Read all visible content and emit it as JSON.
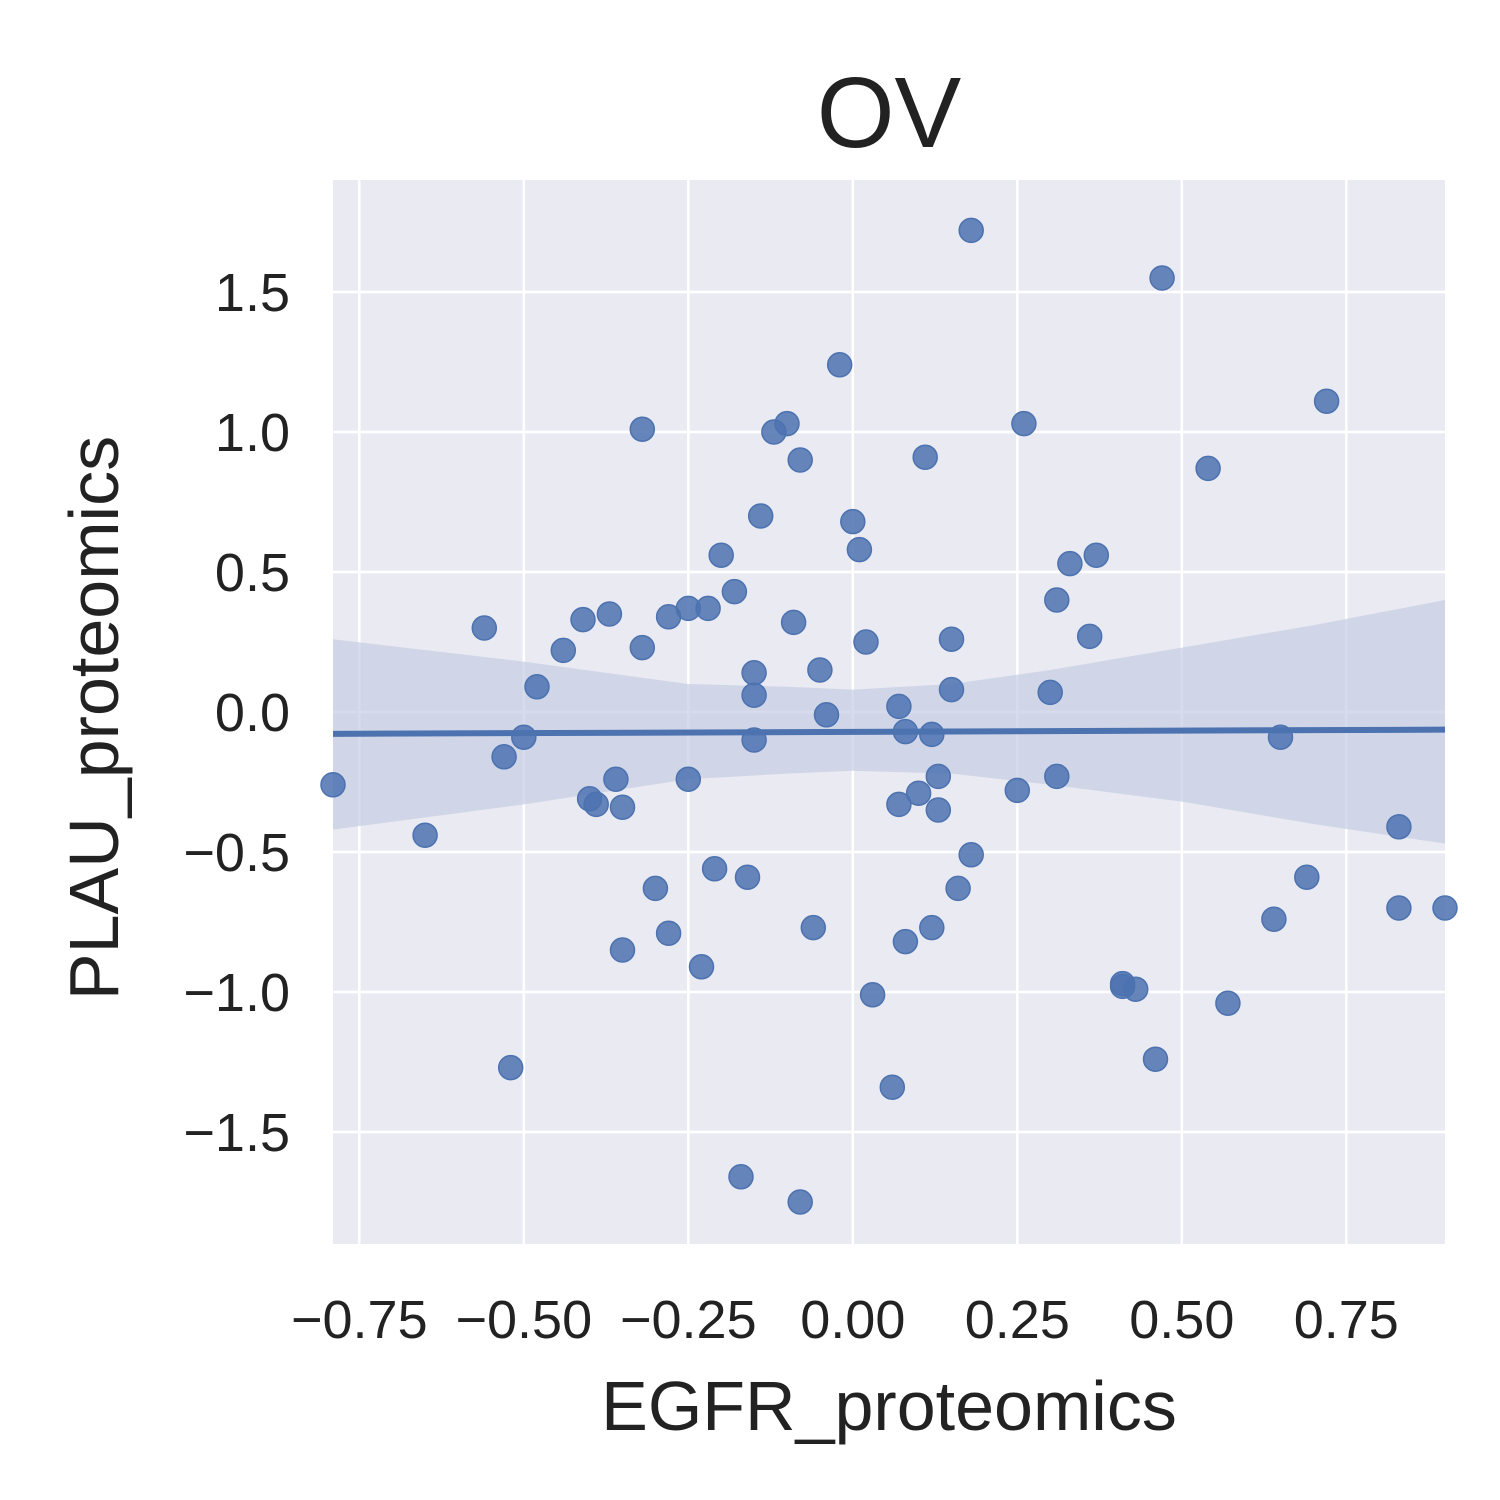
{
  "chart_data": {
    "type": "scatter",
    "title": "OV",
    "xlabel": "EGFR_proteomics",
    "ylabel": "PLAU_proteomics",
    "xlim": [
      -0.79,
      0.9
    ],
    "ylim": [
      -1.9,
      1.9
    ],
    "xticks": [
      -0.75,
      -0.5,
      -0.25,
      0.0,
      0.25,
      0.5,
      0.75
    ],
    "xtick_labels": [
      "−0.75",
      "−0.50",
      "−0.25",
      "0.00",
      "0.25",
      "0.50",
      "0.75"
    ],
    "yticks": [
      -1.5,
      -1.0,
      -0.5,
      0.0,
      0.5,
      1.0,
      1.5
    ],
    "ytick_labels": [
      "−1.5",
      "−1.0",
      "−0.5",
      "0.0",
      "0.5",
      "1.0",
      "1.5"
    ],
    "grid": true,
    "style": "seaborn-darkgrid",
    "colors": {
      "background": "#eaeaf2",
      "grid": "#ffffff",
      "points": "#4c72b0",
      "regression_line": "#4c72b0",
      "confidence_band": "#c5cde3"
    },
    "points": {
      "x": [
        -0.79,
        -0.65,
        -0.56,
        -0.53,
        -0.52,
        -0.5,
        -0.48,
        -0.44,
        -0.41,
        -0.4,
        -0.39,
        -0.37,
        -0.36,
        -0.35,
        -0.35,
        -0.32,
        -0.32,
        -0.3,
        -0.28,
        -0.28,
        -0.25,
        -0.25,
        -0.23,
        -0.22,
        -0.21,
        -0.2,
        -0.18,
        -0.17,
        -0.16,
        -0.15,
        -0.15,
        -0.15,
        -0.14,
        -0.12,
        -0.1,
        -0.09,
        -0.08,
        -0.08,
        -0.06,
        -0.05,
        -0.04,
        -0.02,
        0.0,
        0.01,
        0.02,
        0.03,
        0.06,
        0.07,
        0.07,
        0.08,
        0.08,
        0.1,
        0.11,
        0.12,
        0.12,
        0.13,
        0.13,
        0.15,
        0.15,
        0.16,
        0.18,
        0.18,
        0.25,
        0.26,
        0.3,
        0.31,
        0.31,
        0.33,
        0.36,
        0.37,
        0.41,
        0.41,
        0.43,
        0.46,
        0.47,
        0.54,
        0.57,
        0.64,
        0.65,
        0.69,
        0.72,
        0.83,
        0.83,
        0.9
      ],
      "y": [
        -0.26,
        -0.44,
        0.3,
        -0.16,
        -1.27,
        -0.09,
        0.09,
        0.22,
        0.33,
        -0.31,
        -0.33,
        0.35,
        -0.24,
        -0.85,
        -0.34,
        1.01,
        0.23,
        -0.63,
        -0.79,
        0.34,
        0.37,
        -0.24,
        -0.91,
        0.37,
        -0.56,
        0.56,
        0.43,
        -1.66,
        -0.59,
        0.14,
        0.06,
        -0.1,
        0.7,
        1.0,
        1.03,
        0.32,
        0.9,
        -1.75,
        -0.77,
        0.15,
        -0.01,
        1.24,
        0.68,
        0.58,
        0.25,
        -1.01,
        -1.34,
        -0.33,
        0.02,
        -0.07,
        -0.82,
        -0.29,
        0.91,
        -0.08,
        -0.77,
        -0.35,
        -0.23,
        0.08,
        0.26,
        -0.63,
        1.72,
        -0.51,
        -0.28,
        1.03,
        0.07,
        0.4,
        -0.23,
        0.53,
        0.27,
        0.56,
        -0.98,
        -0.97,
        -0.99,
        -1.24,
        1.55,
        0.87,
        -1.04,
        -0.74,
        -0.09,
        -0.59,
        1.11,
        -0.41,
        -0.7,
        -0.7
      ]
    },
    "regression": {
      "x": [
        -0.79,
        0.9
      ],
      "y": [
        -0.078,
        -0.063
      ]
    },
    "confidence_band": {
      "x": [
        -0.79,
        -0.5,
        -0.25,
        -0.1,
        0.0,
        0.15,
        0.3,
        0.5,
        0.7,
        0.9
      ],
      "lower": [
        -0.42,
        -0.33,
        -0.24,
        -0.22,
        -0.21,
        -0.22,
        -0.26,
        -0.32,
        -0.4,
        -0.47
      ],
      "upper": [
        0.26,
        0.18,
        0.1,
        0.09,
        0.08,
        0.1,
        0.15,
        0.23,
        0.31,
        0.4
      ]
    }
  }
}
